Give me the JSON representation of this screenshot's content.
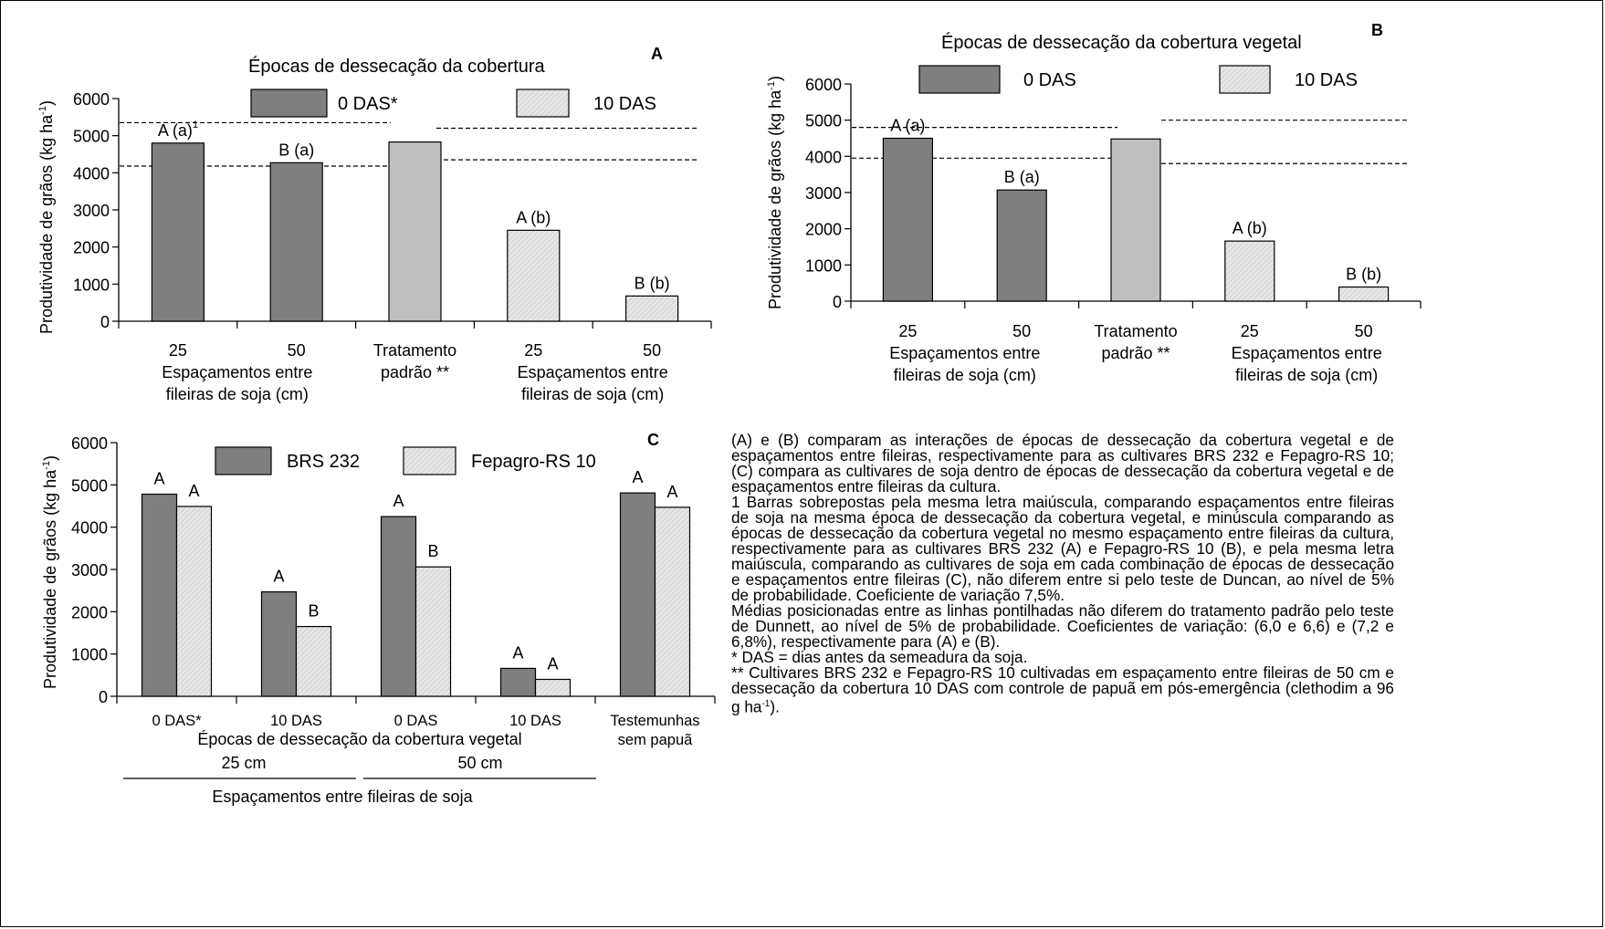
{
  "colors": {
    "dark": "#7f7f7f",
    "medium": "#bfbfbf",
    "light": "#e4e4e4",
    "light_hatch": "#c0c0c0"
  },
  "chart_data": [
    {
      "panel": "A",
      "type": "bar",
      "title": "Épocas de dessecação da cobertura",
      "ylabel": "Produtividade de grãos  (kg ha-1)",
      "ylabel_main": "Produtividade de grãos  (kg ha",
      "ylabel_sup": "-1",
      "ylabel_end": ")",
      "ylim": [
        0,
        6000
      ],
      "yticks": [
        "0",
        "1000",
        "2000",
        "3000",
        "4000",
        "5000",
        "6000"
      ],
      "legend": [
        {
          "name": "0 DAS*",
          "color": "dark"
        },
        {
          "name": "10 DAS",
          "color": "light"
        }
      ],
      "categories": [
        "25",
        "50",
        "Tratamento padrão **",
        "25",
        "50"
      ],
      "bars": [
        {
          "value": 4800,
          "color": "dark",
          "label": "A (a)",
          "label_sup": "1"
        },
        {
          "value": 4270,
          "color": "dark",
          "label": "B (a)"
        },
        {
          "value": 4830,
          "color": "medium",
          "label": ""
        },
        {
          "value": 2450,
          "color": "light",
          "label": "A (b)"
        },
        {
          "value": 680,
          "color": "light",
          "label": "B (b)"
        }
      ],
      "group_labels": [
        {
          "lines": [
            "25",
            "Espaçamentos entre",
            "fileiras de soja (cm)"
          ]
        },
        {
          "lines": [
            "50"
          ]
        },
        {
          "lines": [
            "Tratamento",
            "padrão **"
          ]
        },
        {
          "lines": [
            "25",
            "Espaçamentos entre",
            "fileiras de soja (cm)"
          ]
        },
        {
          "lines": [
            "50"
          ]
        }
      ],
      "reference_lines": [
        {
          "value": 5350,
          "side": "left"
        },
        {
          "value": 4180,
          "side": "left"
        },
        {
          "value": 5200,
          "side": "right"
        },
        {
          "value": 4350,
          "side": "right"
        }
      ]
    },
    {
      "panel": "B",
      "type": "bar",
      "title": "Épocas de dessecação da cobertura vegetal",
      "ylabel": "Produtividade de grãos  (kg ha-1)",
      "ylabel_main": "Produtividade de grãos  (kg ha",
      "ylabel_sup": "-1",
      "ylabel_end": ")",
      "ylim": [
        0,
        6000
      ],
      "yticks": [
        "0",
        "1000",
        "2000",
        "3000",
        "4000",
        "5000",
        "6000"
      ],
      "legend": [
        {
          "name": "0 DAS",
          "color": "dark"
        },
        {
          "name": "10 DAS",
          "color": "light"
        }
      ],
      "categories": [
        "25",
        "50",
        "Tratamento padrão **",
        "25",
        "50"
      ],
      "bars": [
        {
          "value": 4500,
          "color": "dark",
          "label": "A (a)"
        },
        {
          "value": 3070,
          "color": "dark",
          "label": "B (a)"
        },
        {
          "value": 4480,
          "color": "medium",
          "label": ""
        },
        {
          "value": 1660,
          "color": "light",
          "label": "A (b)"
        },
        {
          "value": 390,
          "color": "light",
          "label": "B (b)"
        }
      ],
      "reference_lines": [
        {
          "value": 4800,
          "side": "left"
        },
        {
          "value": 3950,
          "side": "left"
        },
        {
          "value": 5000,
          "side": "right"
        },
        {
          "value": 3800,
          "side": "right"
        }
      ]
    },
    {
      "panel": "C",
      "type": "bar",
      "title": "",
      "ylabel": "Produtividade de grãos  (kg ha-1)",
      "ylabel_main": "Produtividade de grãos  (kg ha",
      "ylabel_sup": "-1",
      "ylabel_end": ")",
      "ylim": [
        0,
        6000
      ],
      "yticks": [
        "0",
        "1000",
        "2000",
        "3000",
        "4000",
        "5000",
        "6000"
      ],
      "legend": [
        {
          "name": "BRS 232",
          "color": "dark"
        },
        {
          "name": "Fepagro-RS 10",
          "color": "light"
        }
      ],
      "categories": [
        "0 DAS*",
        "10 DAS",
        "0 DAS",
        "10 DAS",
        "Testemunhas sem papuã"
      ],
      "series": [
        {
          "name": "BRS 232",
          "color": "dark",
          "values": [
            4780,
            2470,
            4250,
            660,
            4810
          ],
          "labels": [
            "A",
            "A",
            "A",
            "A",
            "A"
          ]
        },
        {
          "name": "Fepagro-RS 10",
          "color": "light",
          "values": [
            4490,
            1650,
            3060,
            400,
            4470
          ],
          "labels": [
            "A",
            "B",
            "B",
            "A",
            "A"
          ]
        }
      ],
      "xlabel": "Épocas de dessecação da cobertura vegetal",
      "group_spacings": [
        "25 cm",
        "50 cm"
      ],
      "spacing_title": "Espaçamentos entre fileiras de soja"
    }
  ],
  "notes": {
    "p1": "(A) e (B) comparam as interações de épocas de dessecação da cobertura vegetal e de espaçamentos entre fileiras, respectivamente para as cultivares BRS 232 e Fepagro-RS 10; (C) compara as cultivares de soja dentro de épocas de dessecação da cobertura vegetal e de espaçamentos entre fileiras da cultura.",
    "p2": "1 Barras sobrepostas pela mesma letra maiúscula, comparando espaçamentos entre fileiras de soja na mesma época de dessecação da cobertura vegetal, e minúscula comparando as épocas de dessecação da cobertura vegetal no mesmo espaçamento entre fileiras da cultura, respectivamente para as cultivares BRS 232 (A) e Fepagro-RS 10 (B), e pela mesma letra maiúscula, comparando as cultivares de soja em cada combinação de épocas de dessecação e espaçamentos entre fileiras (C), não diferem entre si pelo teste de Duncan, ao nível de 5% de probabilidade. Coeficiente de variação 7,5%.",
    "p3": "Médias posicionadas entre as linhas pontilhadas não diferem do tratamento padrão pelo teste de Dunnett, ao nível de 5% de probabilidade. Coeficientes de variação: (6,0 e 6,6) e (7,2 e 6,8%), respectivamente para (A) e (B).",
    "p4": "* DAS = dias antes da semeadura da soja.",
    "p5_main": "** Cultivares BRS 232 e Fepagro-RS 10 cultivadas em espaçamento entre fileiras de 50 cm e dessecação da cobertura 10 DAS com controle de papuã em pós-emergência (clethodim a 96 g ha",
    "p5_sup": "-1",
    "p5_end": ")."
  }
}
